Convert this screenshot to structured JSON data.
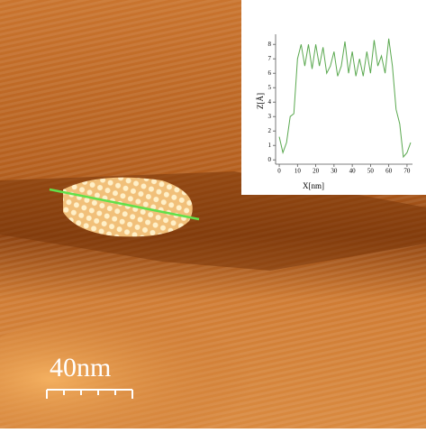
{
  "scale_bar": {
    "label": "40nm"
  },
  "chart_data": {
    "type": "line",
    "xlabel": "X[nm]",
    "ylabel": "Z[Å]",
    "color": "#5aa84f",
    "x": [
      0,
      2,
      4,
      6,
      8,
      10,
      12,
      14,
      16,
      18,
      20,
      22,
      24,
      26,
      28,
      30,
      32,
      34,
      36,
      38,
      40,
      42,
      44,
      46,
      48,
      50,
      52,
      54,
      56,
      58,
      60,
      62,
      64,
      66,
      68,
      70,
      72
    ],
    "values": [
      1.6,
      0.5,
      1.2,
      3.0,
      3.2,
      7.0,
      8.0,
      6.5,
      8.0,
      6.3,
      8.0,
      6.5,
      7.8,
      6.0,
      6.5,
      7.5,
      5.8,
      6.5,
      8.2,
      6.0,
      7.5,
      5.8,
      7.0,
      5.8,
      7.5,
      6.0,
      8.3,
      6.5,
      7.2,
      6.0,
      8.4,
      6.5,
      3.5,
      2.5,
      0.2,
      0.5,
      1.2
    ],
    "xlim": [
      -2,
      73
    ],
    "ylim": [
      -0.3,
      8.7
    ],
    "xticks": [
      0,
      10,
      20,
      30,
      40,
      50,
      60,
      70
    ],
    "yticks": [
      0,
      1,
      2,
      3,
      4,
      5,
      6,
      7,
      8
    ]
  }
}
